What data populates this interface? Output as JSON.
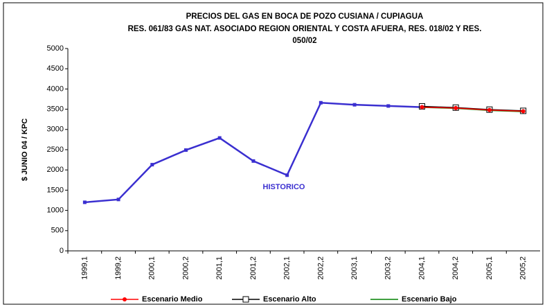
{
  "chart_data": {
    "type": "line",
    "title": [
      "PRECIOS DEL GAS EN BOCA DE POZO CUSIANA / CUPIAGUA",
      "RES. 061/83 GAS NAT. ASOCIADO REGION ORIENTAL Y COSTA AFUERA, RES. 018/02 Y RES.",
      "050/02"
    ],
    "ylabel": "$ JUNIO 04 / KPC",
    "annotation": "HISTORICO",
    "categories": [
      "1999,1",
      "1999,2",
      "2000,1",
      "2000,2",
      "2001,1",
      "2001,2",
      "2002,1",
      "2002,2",
      "2003,1",
      "2003,2",
      "2004,1",
      "2004,2",
      "2005,1",
      "2005,2"
    ],
    "ylim": [
      0,
      5000
    ],
    "yticks": [
      0,
      500,
      1000,
      1500,
      2000,
      2500,
      3000,
      3500,
      4000,
      4500,
      5000
    ],
    "grid": false,
    "legend": "bottom",
    "history": {
      "color": "#3a2fd0",
      "values": [
        1200,
        1270,
        2130,
        2490,
        2790,
        2220,
        1870,
        3660,
        3610,
        3580,
        3550,
        null,
        null,
        null
      ]
    },
    "series": [
      {
        "name": "Escenario Medio",
        "color": "#ff0000",
        "marker": "circle",
        "values": [
          null,
          null,
          null,
          null,
          null,
          null,
          null,
          null,
          null,
          null,
          3550,
          3530,
          3480,
          3450
        ]
      },
      {
        "name": "Escenario Alto",
        "color": "#000000",
        "marker": "square",
        "values": [
          null,
          null,
          null,
          null,
          null,
          null,
          null,
          null,
          null,
          null,
          3570,
          3540,
          3490,
          3460
        ]
      },
      {
        "name": "Escenario Bajo",
        "color": "#008000",
        "marker": "none",
        "values": [
          null,
          null,
          null,
          null,
          null,
          null,
          null,
          null,
          null,
          null,
          3545,
          3520,
          3470,
          3440
        ]
      }
    ]
  }
}
